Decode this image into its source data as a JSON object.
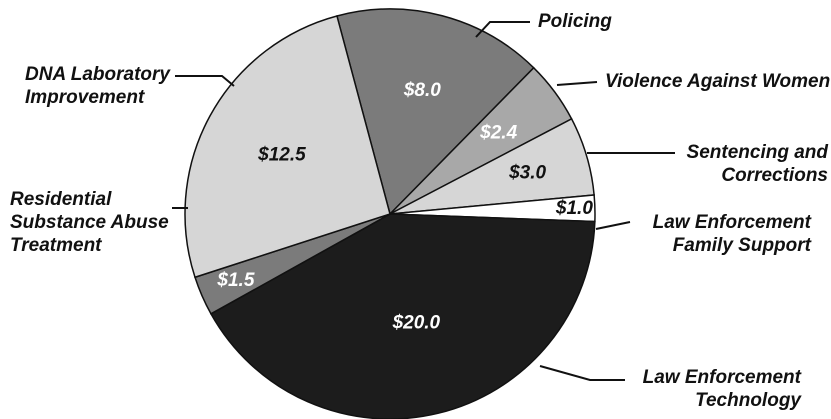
{
  "chart_data": {
    "type": "pie",
    "categories": [
      "Policing",
      "Violence Against Women",
      "Sentencing and\nCorrections",
      "Law Enforcement\nFamily Support",
      "Law Enforcement\nTechnology",
      "Residential\nSubstance Abuse\nTreatment",
      "DNA Laboratory\nImprovement"
    ],
    "values": [
      8.0,
      2.4,
      3.0,
      1.0,
      20.0,
      1.5,
      12.5
    ],
    "value_labels": [
      "$8.0",
      "$2.4",
      "$3.0",
      "$1.0",
      "$20.0",
      "$1.5",
      "$12.5"
    ],
    "colors": [
      "#7b7b7b",
      "#a8a8a8",
      "#d6d6d6",
      "#ffffff",
      "#1c1c1c",
      "#7b7b7b",
      "#d6d6d6"
    ]
  }
}
